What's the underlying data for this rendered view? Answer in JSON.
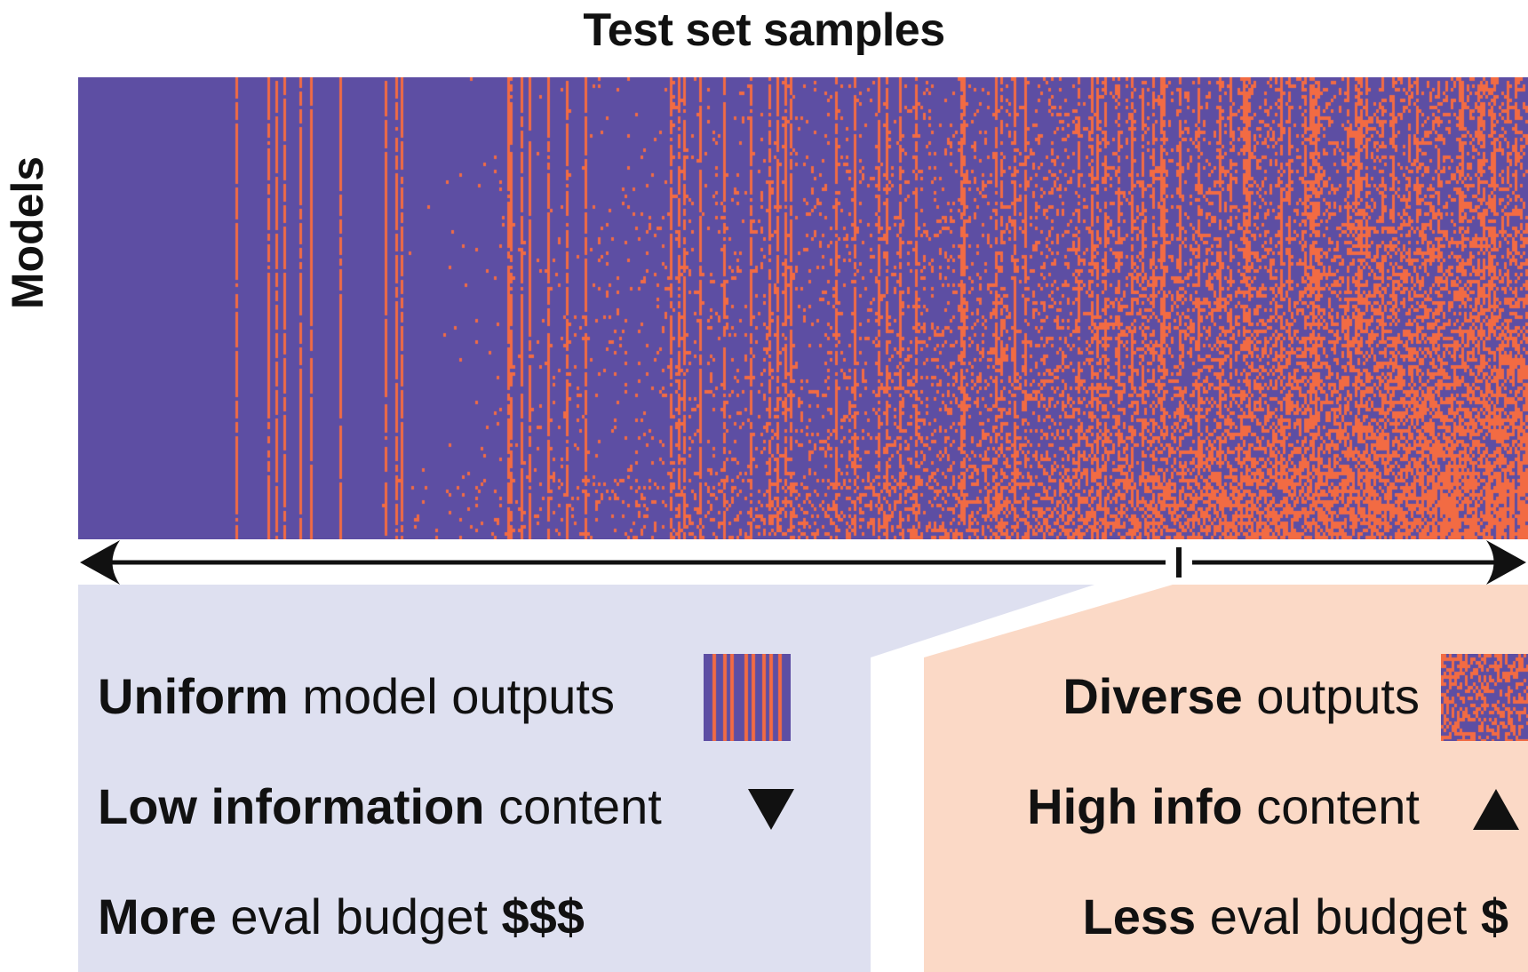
{
  "title": "Test set samples",
  "y_axis_label": "Models",
  "colors": {
    "correct": "#5d4ea3",
    "incorrect": "#f26b43",
    "left_panel": "#dee0f0",
    "right_panel": "#fbd9c6"
  },
  "left_panel": {
    "line1_bold": "Uniform",
    "line1_rest": " model outputs",
    "line2_bold": "Low information",
    "line2_rest": " content",
    "line2_icon": "down-triangle-icon",
    "line3_bold": "More",
    "line3_rest": " eval budget ",
    "line3_symbol": "$$$"
  },
  "right_panel": {
    "line1_bold": "Diverse",
    "line1_rest": " outputs",
    "line2_bold": "High info",
    "line2_rest": " content",
    "line2_icon": "up-triangle-icon",
    "line3_bold": "Less",
    "line3_rest": " eval budget ",
    "line3_symbol": "$"
  },
  "arrow_icon_names": [
    "left-arrowhead-icon",
    "right-arrowhead-icon"
  ]
}
